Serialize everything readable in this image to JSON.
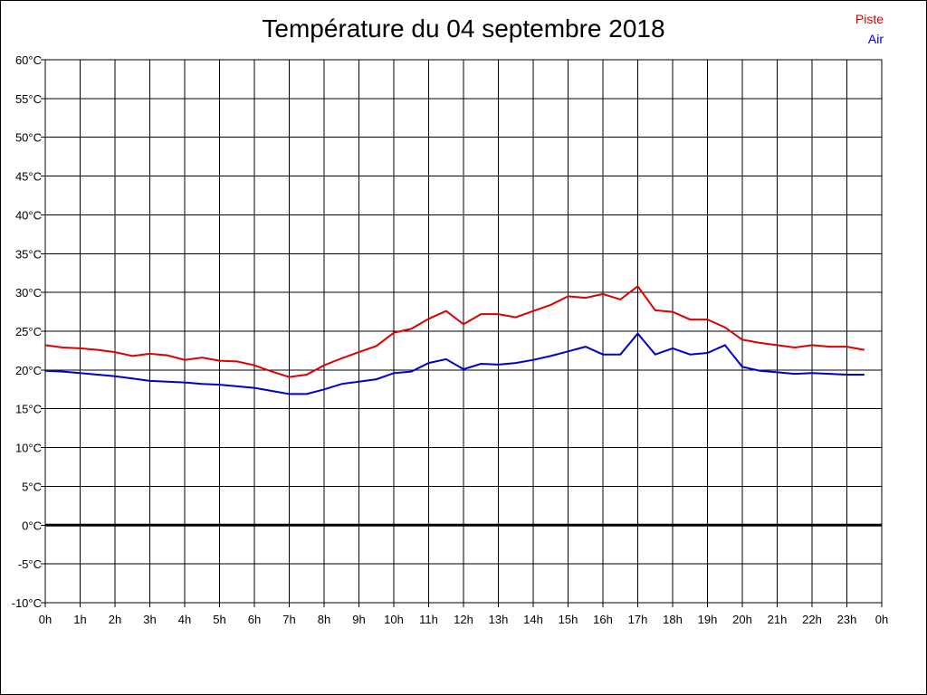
{
  "chart_data": {
    "type": "line",
    "title": "Température du 04 septembre 2018",
    "x_tick_labels": [
      "0h",
      "1h",
      "2h",
      "3h",
      "4h",
      "5h",
      "6h",
      "7h",
      "8h",
      "9h",
      "10h",
      "11h",
      "12h",
      "13h",
      "14h",
      "15h",
      "16h",
      "17h",
      "18h",
      "19h",
      "20h",
      "21h",
      "22h",
      "23h",
      "0h"
    ],
    "y_tick_labels": [
      "60°C",
      "55°C",
      "50°C",
      "45°C",
      "40°C",
      "35°C",
      "30°C",
      "25°C",
      "20°C",
      "15°C",
      "10°C",
      "5°C",
      "0°C",
      "-5°C",
      "-10°C"
    ],
    "ylim": [
      -10,
      60
    ],
    "xlim": [
      0,
      24
    ],
    "grid": true,
    "legend_position": "top-right",
    "x": [
      0,
      0.5,
      1,
      1.5,
      2,
      2.5,
      3,
      3.5,
      4,
      4.5,
      5,
      5.5,
      6,
      6.5,
      7,
      7.5,
      8,
      8.5,
      9,
      9.5,
      10,
      10.5,
      11,
      11.5,
      12,
      12.5,
      13,
      13.5,
      14,
      14.5,
      15,
      15.5,
      16,
      16.5,
      17,
      17.5,
      18,
      18.5,
      19,
      19.5,
      20,
      20.5,
      21,
      21.5,
      22,
      22.5,
      23,
      23.5
    ],
    "series": [
      {
        "name": "Piste",
        "color": "#dd0000",
        "values": [
          23.2,
          22.9,
          22.8,
          22.6,
          22.3,
          21.8,
          22.1,
          21.9,
          21.3,
          21.6,
          21.2,
          21.1,
          20.6,
          19.8,
          19.1,
          19.4,
          20.6,
          21.5,
          22.3,
          23.1,
          24.8,
          25.3,
          26.6,
          27.6,
          25.9,
          27.2,
          27.2,
          26.8,
          27.6,
          28.4,
          29.5,
          29.3,
          29.8,
          29.1,
          30.8,
          27.7,
          27.5,
          26.5,
          26.5,
          25.5,
          23.9,
          23.5,
          23.2,
          22.9,
          23.2,
          23.0,
          23.0,
          22.6
        ]
      },
      {
        "name": "Air",
        "color": "#0000cc",
        "values": [
          19.9,
          19.8,
          19.6,
          19.4,
          19.2,
          18.9,
          18.6,
          18.5,
          18.4,
          18.2,
          18.1,
          17.9,
          17.7,
          17.3,
          16.9,
          16.9,
          17.5,
          18.2,
          18.5,
          18.8,
          19.6,
          19.8,
          20.9,
          21.4,
          20.1,
          20.8,
          20.7,
          20.9,
          21.3,
          21.8,
          22.4,
          23.0,
          22.0,
          22.0,
          24.7,
          22.0,
          22.8,
          22.0,
          22.2,
          23.2,
          20.4,
          19.9,
          19.7,
          19.5,
          19.6,
          19.5,
          19.4,
          19.4
        ]
      }
    ]
  }
}
